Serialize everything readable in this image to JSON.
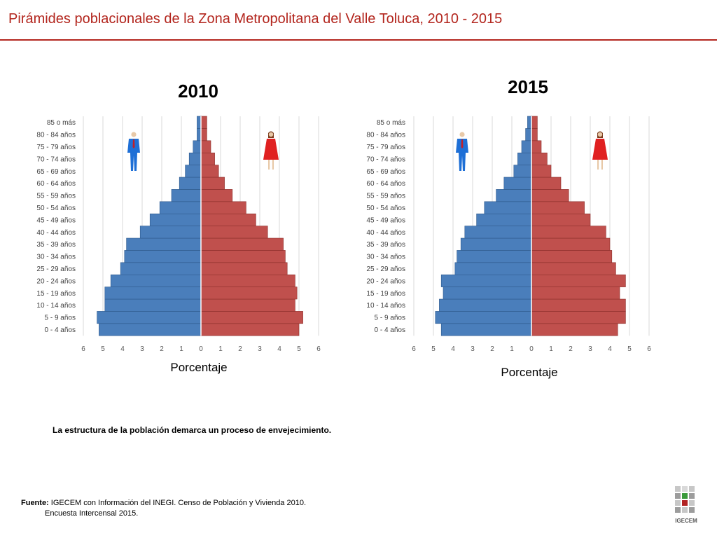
{
  "header": {
    "title": "Pirámides poblacionales de la Zona Metropolitana del Valle Toluca, 2010 - 2015"
  },
  "caption": "La estructura de la población demarca un proceso de envejecimiento.",
  "source": {
    "label": "Fuente:",
    "line1": "IGECEM con Información del INEGI. Censo de Población y Vivienda 2010.",
    "line2": "Encuesta Intercensal 2015."
  },
  "logo": {
    "text": "IGECEM",
    "icon": "igecem-logo"
  },
  "colors": {
    "male": "#4a7ebb",
    "female": "#c0504d",
    "title": "#b3261e",
    "male_icon": "#1e6fd6",
    "female_icon": "#e02020"
  },
  "chart_data": [
    {
      "type": "bar",
      "title": "2010",
      "xlabel": "Porcentaje",
      "xlim": [
        -6,
        6
      ],
      "x_ticks": [
        "6",
        "5",
        "4",
        "3",
        "2",
        "1",
        "0",
        "1",
        "2",
        "3",
        "4",
        "5",
        "6"
      ],
      "categories": [
        "0  -  4 años",
        "5  -  9 años",
        "10 - 14 años",
        "15 - 19 años",
        "20 - 24 años",
        "25 - 29 años",
        "30 - 34 años",
        "35 - 39 años",
        "40 - 44 años",
        "45 - 49 años",
        "50 - 54 años",
        "55 - 59 años",
        "60 - 64 años",
        "65 - 69 años",
        "70 - 74 años",
        "75 - 79 años",
        "80 - 84 años",
        "85 o más"
      ],
      "series": [
        {
          "values": [
            5.2,
            5.3,
            4.9,
            4.9,
            4.6,
            4.1,
            3.9,
            3.8,
            3.1,
            2.6,
            2.1,
            1.5,
            1.1,
            0.8,
            0.6,
            0.4,
            0.2,
            0.2
          ]
        },
        {
          "values": [
            5.0,
            5.2,
            4.8,
            4.9,
            4.8,
            4.4,
            4.3,
            4.2,
            3.4,
            2.8,
            2.3,
            1.6,
            1.2,
            0.9,
            0.7,
            0.5,
            0.3,
            0.3
          ]
        }
      ]
    },
    {
      "type": "bar",
      "title": "2015",
      "xlabel": "Porcentaje",
      "xlim": [
        -6,
        6
      ],
      "x_ticks": [
        "6",
        "5",
        "4",
        "3",
        "2",
        "1",
        "0",
        "1",
        "2",
        "3",
        "4",
        "5",
        "6"
      ],
      "categories": [
        "0  -  4 años",
        "5  -  9 años",
        "10 - 14 años",
        "15 - 19 años",
        "20 - 24 años",
        "25 - 29 años",
        "30 - 34 años",
        "35 - 39 años",
        "40 - 44 años",
        "45 - 49 años",
        "50 - 54 años",
        "55 - 59 años",
        "60 - 64 años",
        "65 - 69 años",
        "70 - 74 años",
        "75 - 79 años",
        "80 - 84 años",
        "85 o más"
      ],
      "series": [
        {
          "values": [
            4.6,
            4.9,
            4.7,
            4.5,
            4.6,
            3.9,
            3.8,
            3.6,
            3.4,
            2.8,
            2.4,
            1.8,
            1.4,
            0.9,
            0.7,
            0.5,
            0.3,
            0.2
          ]
        },
        {
          "values": [
            4.4,
            4.8,
            4.8,
            4.5,
            4.8,
            4.3,
            4.1,
            4.0,
            3.8,
            3.0,
            2.7,
            1.9,
            1.5,
            1.0,
            0.8,
            0.5,
            0.3,
            0.3
          ]
        }
      ]
    }
  ]
}
